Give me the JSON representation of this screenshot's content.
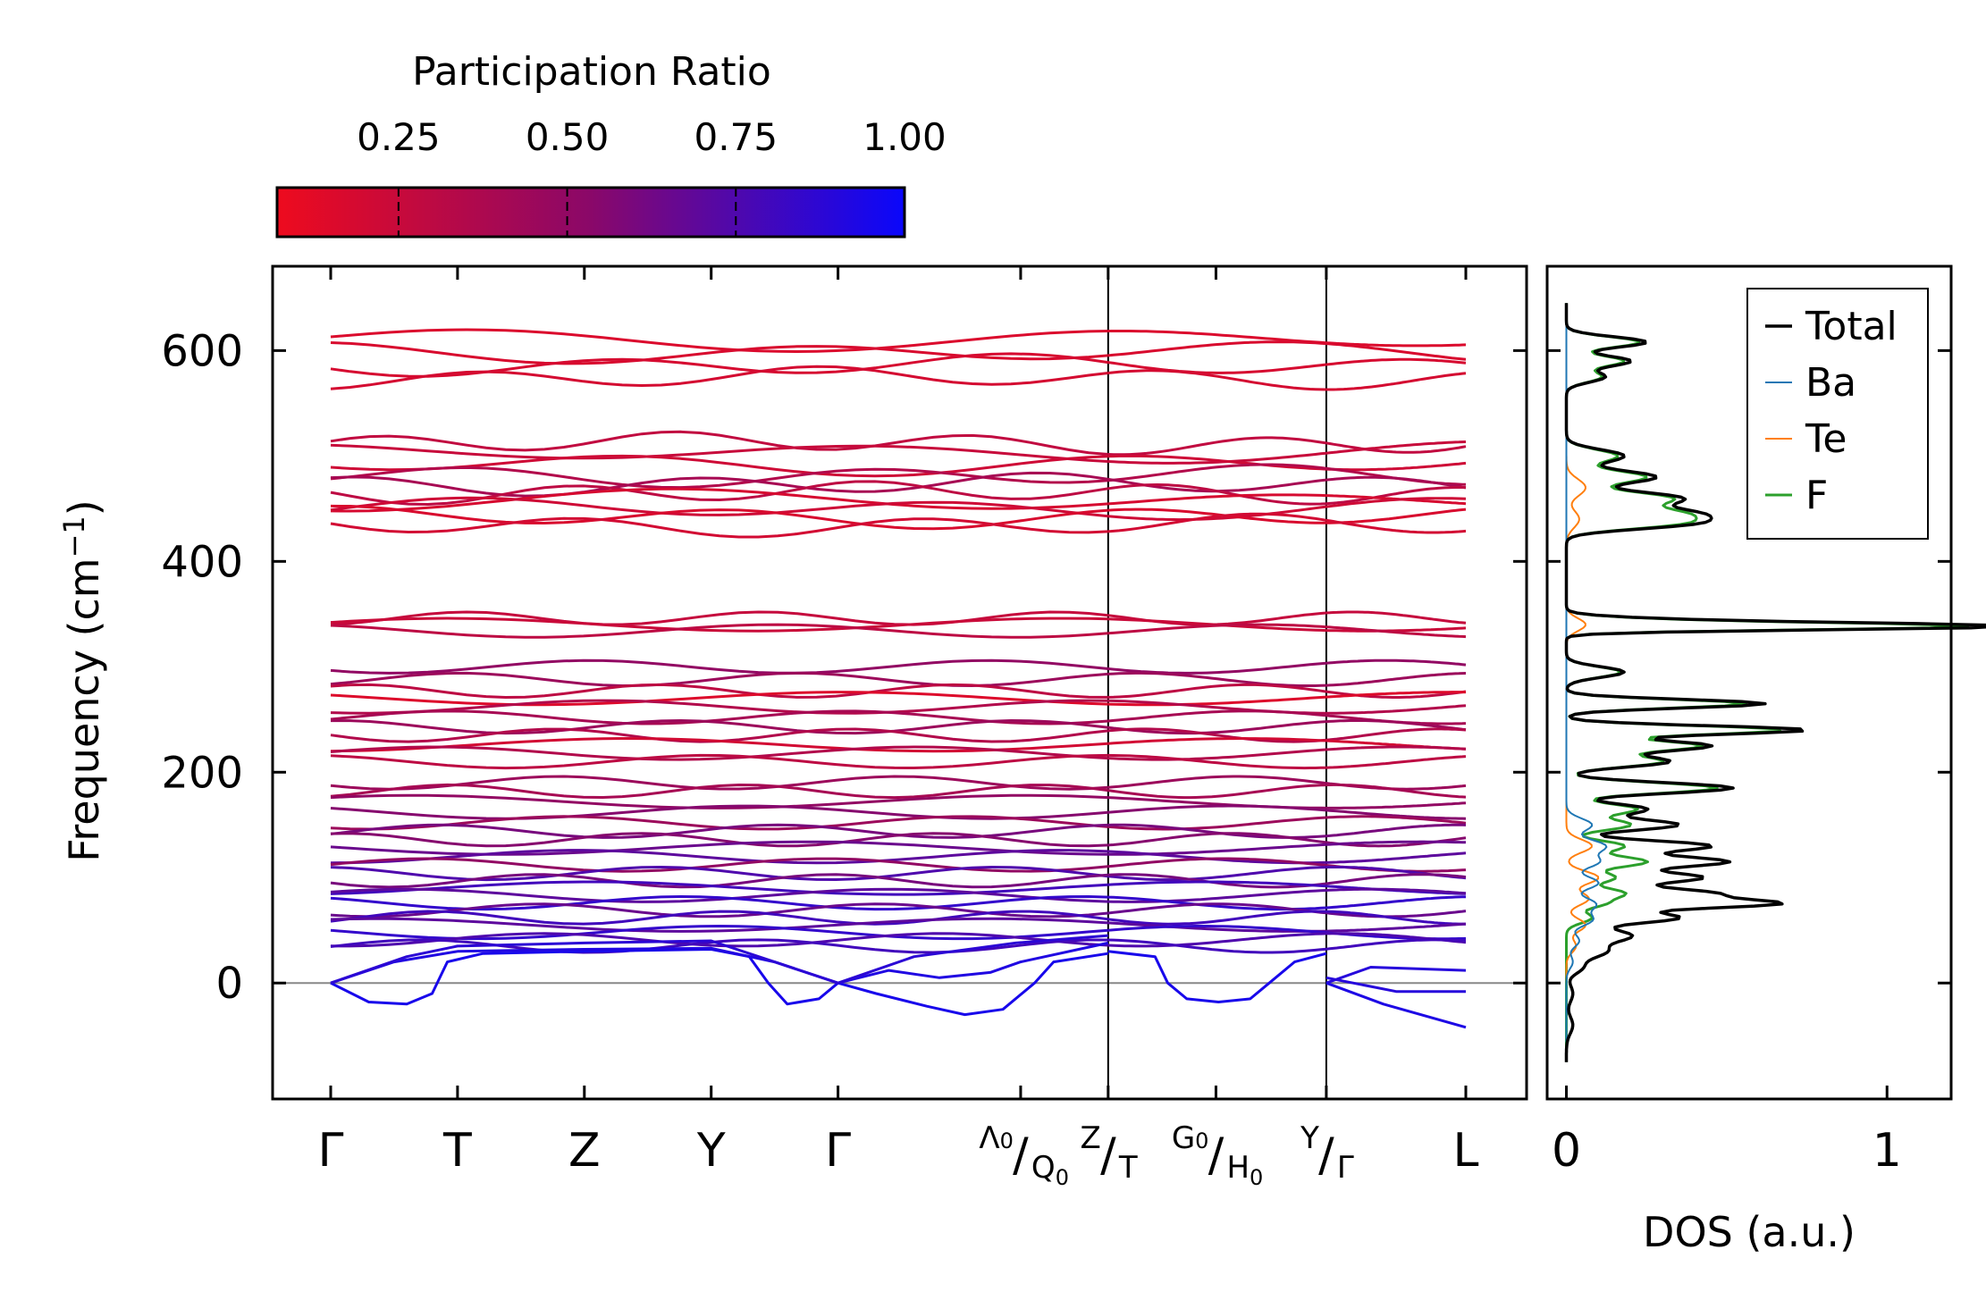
{
  "chart_data": [
    {
      "type": "line",
      "name": "phonon-band-structure",
      "ylabel_main": "Frequency (cm",
      "ylabel_sup": "−1",
      "ylabel_close": ")",
      "ylim": [
        -110,
        680
      ],
      "yticks": [
        0,
        200,
        400,
        600
      ],
      "ytick_labels": [
        "0",
        "200",
        "400",
        "600"
      ],
      "xticks": [
        {
          "label": "Γ",
          "pos": 0.0
        },
        {
          "label": "T",
          "pos": 1.0
        },
        {
          "label": "Z",
          "pos": 2.0
        },
        {
          "label": "Y",
          "pos": 3.0
        },
        {
          "label": "Γ",
          "pos": 4.0
        },
        {
          "pos": 5.44,
          "top": "Λ",
          "topsub": "0",
          "bot": "Q",
          "botsub": "0"
        },
        {
          "pos": 6.13,
          "top": "Z",
          "topsub": "",
          "bot": "T",
          "botsub": ""
        },
        {
          "pos": 6.98,
          "top": "G",
          "topsub": "0",
          "bot": "H",
          "botsub": "0"
        },
        {
          "pos": 7.85,
          "top": "Y",
          "topsub": "",
          "bot": "Γ",
          "botsub": ""
        },
        {
          "label": "L",
          "pos": 8.95
        }
      ],
      "segment_breaks": [
        6.13,
        7.85
      ],
      "x_end": 8.95,
      "colorbar": {
        "title": "Participation Ratio",
        "range": [
          0.07,
          1.0
        ],
        "ticks": [
          0.25,
          0.5,
          0.75,
          1.0
        ],
        "tick_labels": [
          "0.25",
          "0.50",
          "0.75",
          "1.00"
        ],
        "color_low": "#ee0b1e",
        "color_mid": "#8a0869",
        "color_high": "#0a07fb"
      },
      "band_levels": [
        {
          "f": 610,
          "pr": 0.16
        },
        {
          "f": 598,
          "pr": 0.17
        },
        {
          "f": 586,
          "pr": 0.18
        },
        {
          "f": 574,
          "pr": 0.19
        },
        {
          "f": 512,
          "pr": 0.28
        },
        {
          "f": 503,
          "pr": 0.25
        },
        {
          "f": 492,
          "pr": 0.22
        },
        {
          "f": 481,
          "pr": 0.35
        },
        {
          "f": 473,
          "pr": 0.4
        },
        {
          "f": 465,
          "pr": 0.3
        },
        {
          "f": 458,
          "pr": 0.18
        },
        {
          "f": 450,
          "pr": 0.22
        },
        {
          "f": 442,
          "pr": 0.17
        },
        {
          "f": 434,
          "pr": 0.2
        },
        {
          "f": 346,
          "pr": 0.26
        },
        {
          "f": 340,
          "pr": 0.24
        },
        {
          "f": 334,
          "pr": 0.3
        },
        {
          "f": 300,
          "pr": 0.5
        },
        {
          "f": 288,
          "pr": 0.45
        },
        {
          "f": 277,
          "pr": 0.3
        },
        {
          "f": 270,
          "pr": 0.15
        },
        {
          "f": 262,
          "pr": 0.35
        },
        {
          "f": 252,
          "pr": 0.4
        },
        {
          "f": 243,
          "pr": 0.45
        },
        {
          "f": 235,
          "pr": 0.35
        },
        {
          "f": 226,
          "pr": 0.2
        },
        {
          "f": 218,
          "pr": 0.35
        },
        {
          "f": 210,
          "pr": 0.3
        },
        {
          "f": 190,
          "pr": 0.45
        },
        {
          "f": 182,
          "pr": 0.4
        },
        {
          "f": 172,
          "pr": 0.5
        },
        {
          "f": 162,
          "pr": 0.55
        },
        {
          "f": 152,
          "pr": 0.45
        },
        {
          "f": 144,
          "pr": 0.6
        },
        {
          "f": 136,
          "pr": 0.55
        },
        {
          "f": 128,
          "pr": 0.65
        },
        {
          "f": 120,
          "pr": 0.7
        },
        {
          "f": 112,
          "pr": 0.5
        },
        {
          "f": 104,
          "pr": 0.75
        },
        {
          "f": 97,
          "pr": 0.6
        },
        {
          "f": 90,
          "pr": 0.8
        },
        {
          "f": 83,
          "pr": 0.7
        },
        {
          "f": 76,
          "pr": 0.85
        },
        {
          "f": 69,
          "pr": 0.65
        },
        {
          "f": 62,
          "pr": 0.8
        },
        {
          "f": 55,
          "pr": 0.7
        },
        {
          "f": 48,
          "pr": 0.85
        },
        {
          "f": 41,
          "pr": 0.75
        },
        {
          "f": 35,
          "pr": 0.8
        }
      ],
      "acoustic_branches": [
        {
          "pr": 0.95,
          "points": [
            [
              0,
              0
            ],
            [
              0.3,
              -18
            ],
            [
              0.6,
              -20
            ],
            [
              0.8,
              -10
            ],
            [
              0.92,
              20
            ],
            [
              1.2,
              28
            ],
            [
              2.0,
              30
            ],
            [
              3.0,
              32
            ],
            [
              3.3,
              25
            ],
            [
              3.45,
              0
            ],
            [
              3.6,
              -20
            ],
            [
              3.85,
              -15
            ],
            [
              4.0,
              0
            ],
            [
              4.3,
              -10
            ],
            [
              4.7,
              -22
            ],
            [
              5.0,
              -30
            ],
            [
              5.3,
              -25
            ],
            [
              5.55,
              0
            ],
            [
              5.7,
              20
            ],
            [
              6.13,
              28
            ]
          ]
        },
        {
          "pr": 0.92,
          "points": [
            [
              0,
              0
            ],
            [
              0.5,
              20
            ],
            [
              1.0,
              30
            ],
            [
              2.0,
              32
            ],
            [
              3.0,
              33
            ],
            [
              3.5,
              20
            ],
            [
              4.0,
              0
            ],
            [
              4.4,
              12
            ],
            [
              4.8,
              5
            ],
            [
              5.2,
              10
            ],
            [
              5.44,
              20
            ],
            [
              6.13,
              38
            ]
          ]
        },
        {
          "pr": 0.88,
          "points": [
            [
              0,
              0
            ],
            [
              0.6,
              25
            ],
            [
              1.0,
              35
            ],
            [
              2.0,
              38
            ],
            [
              3.0,
              40
            ],
            [
              4.0,
              0
            ],
            [
              4.6,
              25
            ],
            [
              5.4,
              38
            ],
            [
              6.13,
              45
            ]
          ]
        },
        {
          "pr": 0.95,
          "points": [
            [
              6.13,
              30
            ],
            [
              6.5,
              25
            ],
            [
              6.6,
              0
            ],
            [
              6.75,
              -15
            ],
            [
              7.0,
              -18
            ],
            [
              7.25,
              -15
            ],
            [
              7.4,
              0
            ],
            [
              7.6,
              20
            ],
            [
              7.85,
              28
            ]
          ]
        },
        {
          "pr": 0.9,
          "points": [
            [
              7.85,
              0
            ],
            [
              8.2,
              15
            ],
            [
              8.95,
              12
            ]
          ]
        },
        {
          "pr": 0.93,
          "points": [
            [
              7.85,
              0
            ],
            [
              8.3,
              -20
            ],
            [
              8.95,
              -42
            ]
          ]
        },
        {
          "pr": 0.9,
          "points": [
            [
              7.85,
              5
            ],
            [
              8.4,
              -8
            ],
            [
              8.95,
              -8
            ]
          ]
        }
      ],
      "dos": {
        "xlabel": "DOS (a.u.)",
        "xlim": [
          -0.06,
          1.2
        ],
        "xticks": [
          0,
          1
        ],
        "xtick_labels": [
          "0",
          "1"
        ],
        "legend_position": "top-right",
        "series": [
          {
            "name": "Total",
            "color": "#000000",
            "width": 3.5,
            "peaks": [
              [
                608,
                0.25,
                5
              ],
              [
                590,
                0.2,
                5
              ],
              [
                575,
                0.12,
                5
              ],
              [
                500,
                0.18,
                6
              ],
              [
                480,
                0.28,
                6
              ],
              [
                460,
                0.35,
                6
              ],
              [
                445,
                0.38,
                6
              ],
              [
                435,
                0.3,
                5
              ],
              [
                342,
                0.42,
                4
              ],
              [
                338,
                1.13,
                3
              ],
              [
                295,
                0.18,
                5
              ],
              [
                265,
                0.62,
                4
              ],
              [
                240,
                0.75,
                4
              ],
              [
                225,
                0.45,
                5
              ],
              [
                210,
                0.32,
                5
              ],
              [
                185,
                0.52,
                5
              ],
              [
                165,
                0.25,
                5
              ],
              [
                150,
                0.35,
                5
              ],
              [
                130,
                0.45,
                5
              ],
              [
                115,
                0.5,
                5
              ],
              [
                100,
                0.42,
                5
              ],
              [
                85,
                0.45,
                5
              ],
              [
                75,
                0.6,
                4
              ],
              [
                62,
                0.35,
                5
              ],
              [
                45,
                0.2,
                6
              ],
              [
                30,
                0.12,
                6
              ],
              [
                15,
                0.05,
                6
              ],
              [
                -10,
                0.02,
                8
              ],
              [
                -40,
                0.02,
                8
              ]
            ]
          },
          {
            "name": "Ba",
            "color": "#1f77b4",
            "width": 2,
            "peaks": [
              [
                150,
                0.08,
                6
              ],
              [
                130,
                0.12,
                6
              ],
              [
                115,
                0.1,
                6
              ],
              [
                95,
                0.1,
                6
              ],
              [
                75,
                0.09,
                6
              ],
              [
                60,
                0.08,
                6
              ],
              [
                40,
                0.04,
                6
              ],
              [
                20,
                0.02,
                6
              ]
            ]
          },
          {
            "name": "Te",
            "color": "#ff7f0e",
            "width": 2,
            "peaks": [
              [
                470,
                0.06,
                8
              ],
              [
                440,
                0.04,
                8
              ],
              [
                340,
                0.06,
                6
              ],
              [
                130,
                0.08,
                6
              ],
              [
                100,
                0.1,
                6
              ],
              [
                80,
                0.07,
                6
              ],
              [
                55,
                0.06,
                6
              ],
              [
                35,
                0.03,
                6
              ]
            ]
          },
          {
            "name": "F",
            "color": "#2ca02c",
            "width": 3,
            "peaks": [
              [
                608,
                0.23,
                5
              ],
              [
                590,
                0.18,
                5
              ],
              [
                575,
                0.11,
                5
              ],
              [
                500,
                0.16,
                6
              ],
              [
                480,
                0.25,
                6
              ],
              [
                460,
                0.32,
                6
              ],
              [
                445,
                0.34,
                6
              ],
              [
                435,
                0.27,
                5
              ],
              [
                342,
                0.38,
                4
              ],
              [
                338,
                1.02,
                3
              ],
              [
                295,
                0.17,
                5
              ],
              [
                265,
                0.56,
                4
              ],
              [
                240,
                0.68,
                4
              ],
              [
                225,
                0.42,
                5
              ],
              [
                210,
                0.3,
                5
              ],
              [
                185,
                0.47,
                5
              ],
              [
                165,
                0.22,
                5
              ],
              [
                150,
                0.2,
                5
              ],
              [
                130,
                0.18,
                5
              ],
              [
                115,
                0.25,
                5
              ],
              [
                100,
                0.15,
                5
              ],
              [
                85,
                0.18,
                5
              ],
              [
                75,
                0.1,
                4
              ],
              [
                62,
                0.08,
                5
              ]
            ]
          }
        ]
      }
    }
  ]
}
